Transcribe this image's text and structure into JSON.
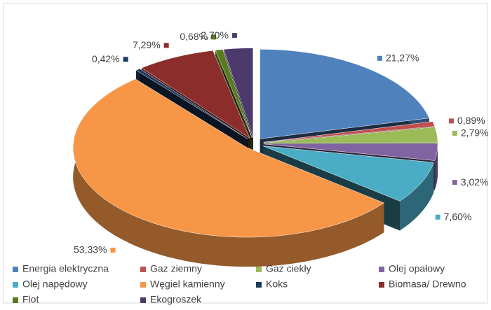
{
  "chart_data": {
    "type": "pie",
    "categories": [
      "Energia elektryczna",
      "Gaz ziemny",
      "Gaz ciekły",
      "Olej opałowy",
      "Olej napędowy",
      "Węgiel kamienny",
      "Koks",
      "Biomasa/ Drewno",
      "Flot",
      "Ekogroszek"
    ],
    "values": [
      21.27,
      0.89,
      2.79,
      3.02,
      7.6,
      53.33,
      0.42,
      7.29,
      0.68,
      2.7
    ],
    "value_labels": [
      "21,27%",
      "0,89%",
      "2,79%",
      "3,02%",
      "7,60%",
      "53,33%",
      "0,42%",
      "7,29%",
      "0,68%",
      "2,70%"
    ],
    "colors": [
      "#4f81bd",
      "#c0504d",
      "#9bbb59",
      "#8064a2",
      "#4bacc6",
      "#f79646",
      "#1f3a60",
      "#8b2e2b",
      "#5a7a1e",
      "#4b3a6b"
    ],
    "legend": "bottom"
  }
}
